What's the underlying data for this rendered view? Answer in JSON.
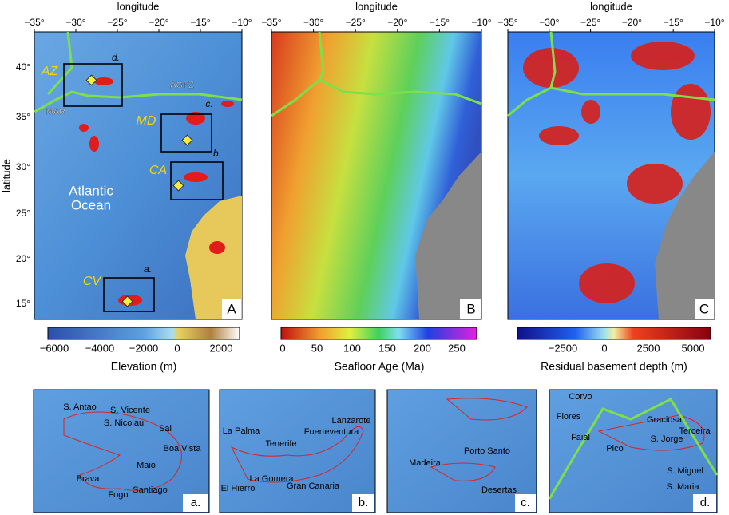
{
  "map_panels": [
    {
      "label": "A",
      "x_axis_title": "longitude",
      "x_ticks": [
        "−35°",
        "−30°",
        "−25°",
        "−20°",
        "−15°",
        "−10°"
      ],
      "y_axis_title": "latitude",
      "y_ticks": [
        "40°",
        "35°",
        "30°",
        "25°",
        "20°",
        "15°"
      ],
      "annotations": [
        "AZ",
        "MD",
        "CA",
        "CV",
        "d.",
        "c.",
        "b.",
        "a.",
        "Atlantic",
        "Ocean",
        "MAR",
        "AGFZ"
      ]
    },
    {
      "label": "B",
      "x_axis_title": "longitude",
      "x_ticks": [
        "−35°",
        "−30°",
        "−25°",
        "−20°",
        "−15°",
        "−10°"
      ]
    },
    {
      "label": "C",
      "x_axis_title": "longitude",
      "x_ticks": [
        "−35°",
        "−30°",
        "−25°",
        "−20°",
        "−15°",
        "−10°"
      ]
    }
  ],
  "colorbars": [
    {
      "title": "Elevation (m)",
      "ticks": [
        "−6000",
        "−4000",
        "−2000",
        "0",
        "2000"
      ]
    },
    {
      "title": "Seafloor Age (Ma)",
      "ticks": [
        "0",
        "50",
        "100",
        "150",
        "200",
        "250"
      ]
    },
    {
      "title": "Residual basement depth (m)",
      "ticks": [
        "−2500",
        "0",
        "2500",
        "5000"
      ]
    }
  ],
  "insets": [
    {
      "label": "a.",
      "islands": [
        "S. Antao",
        "S. Vicente",
        "S. Nicolau",
        "Sal",
        "Boa Vista",
        "Maio",
        "Brava",
        "Santiago",
        "Fogo"
      ]
    },
    {
      "label": "b.",
      "islands": [
        "La Palma",
        "Lanzarote",
        "Fuerteventura",
        "Tenerife",
        "La Gomera",
        "El Hierro",
        "Gran Canaria"
      ]
    },
    {
      "label": "c.",
      "islands": [
        "Porto Santo",
        "Madeira",
        "Desertas"
      ]
    },
    {
      "label": "d.",
      "islands": [
        "Corvo",
        "Flores",
        "Graciosa",
        "Terceira",
        "Faial",
        "S. Jorge",
        "Pico",
        "S. Miguel",
        "S. Maria"
      ]
    }
  ]
}
